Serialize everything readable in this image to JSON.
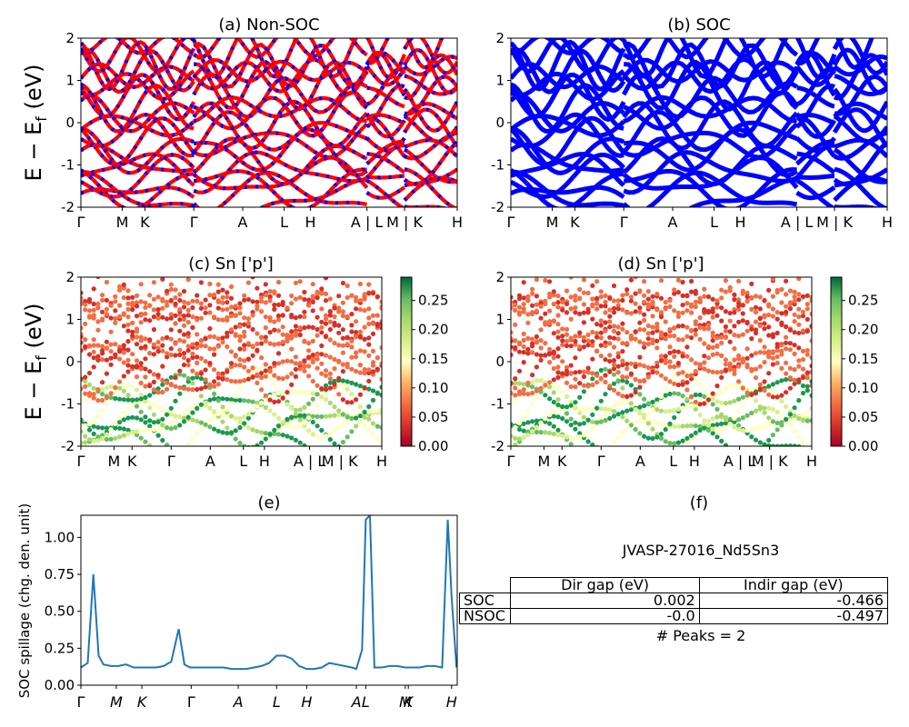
{
  "figure": {
    "ylabel_bands": "E − E",
    "ylabel_sub": "f",
    "ylabel_unit": " (eV)"
  },
  "chart_data": [
    {
      "id": "a",
      "type": "line",
      "title": "(a) Non-SOC",
      "ylim": [
        -2,
        2
      ],
      "yticks": [
        -2,
        -1,
        0,
        1,
        2
      ],
      "xticks": [
        "Γ",
        "M",
        "K",
        "Γ",
        "A",
        "L",
        "H",
        "A | L",
        "M | K",
        "H"
      ],
      "colors": [
        "#ff0000",
        "#0000ff"
      ],
      "bands": [
        -1.85,
        -1.72,
        -1.5,
        -1.32,
        -1.1,
        -0.92,
        -0.7,
        -0.45,
        -0.25,
        -0.05,
        0.18,
        0.35,
        0.62,
        0.88,
        1.1,
        1.22,
        1.35,
        1.62,
        1.85
      ]
    },
    {
      "id": "b",
      "type": "line",
      "title": "(b) SOC",
      "ylim": [
        -2,
        2
      ],
      "yticks": [
        -2,
        -1,
        0,
        1,
        2
      ],
      "xticks": [
        "Γ",
        "M",
        "K",
        "Γ",
        "A",
        "L",
        "H",
        "A | L",
        "M | K",
        "H"
      ],
      "colors": [
        "#0000ff"
      ],
      "bands": [
        -1.85,
        -1.72,
        -1.5,
        -1.32,
        -1.1,
        -0.92,
        -0.7,
        -0.45,
        -0.25,
        -0.05,
        0.18,
        0.35,
        0.62,
        0.88,
        1.1,
        1.22,
        1.35,
        1.62,
        1.85
      ]
    },
    {
      "id": "c",
      "type": "scatter",
      "title": "(c)  Sn ['p']",
      "ylim": [
        -2,
        2
      ],
      "yticks": [
        -2,
        -1,
        0,
        1,
        2
      ],
      "xticks": [
        "Γ",
        "M",
        "K",
        "Γ",
        "A",
        "L",
        "H",
        "A | L",
        "M | K",
        "H"
      ],
      "colorbar": {
        "min": 0.0,
        "max": 0.29,
        "ticks": [
          "0.00",
          "0.05",
          "0.10",
          "0.15",
          "0.20",
          "0.25"
        ],
        "colormap": "RdYlGn"
      },
      "bands": [
        -1.85,
        -1.72,
        -1.5,
        -1.32,
        -1.1,
        -0.92,
        -0.7,
        -0.45,
        -0.25,
        -0.05,
        0.18,
        0.35,
        0.62,
        0.88,
        1.1,
        1.22,
        1.35,
        1.62,
        1.85
      ]
    },
    {
      "id": "d",
      "type": "scatter",
      "title": "(d) Sn ['p']",
      "ylim": [
        -2,
        2
      ],
      "yticks": [
        -2,
        -1,
        0,
        1,
        2
      ],
      "xticks": [
        "Γ",
        "M",
        "K",
        "Γ",
        "A",
        "L",
        "H",
        "A | L",
        "M | K",
        "H"
      ],
      "colorbar": {
        "min": 0.0,
        "max": 0.29,
        "ticks": [
          "0.00",
          "0.05",
          "0.10",
          "0.15",
          "0.20",
          "0.25"
        ],
        "colormap": "RdYlGn"
      },
      "bands": [
        -1.85,
        -1.72,
        -1.5,
        -1.32,
        -1.1,
        -0.92,
        -0.7,
        -0.45,
        -0.25,
        -0.05,
        0.18,
        0.35,
        0.62,
        0.88,
        1.1,
        1.22,
        1.35,
        1.62,
        1.85
      ]
    },
    {
      "id": "e",
      "type": "line",
      "title": "(e)",
      "ylabel": "SOC spillage (chg. den. unit)",
      "ylim": [
        0,
        1.15
      ],
      "yticks": [
        "0.00",
        "0.25",
        "0.50",
        "0.75",
        "1.00"
      ],
      "xlim": [
        0,
        1
      ],
      "xtick_positions": [
        0.0,
        0.094,
        0.162,
        0.293,
        0.418,
        0.52,
        0.6,
        0.732,
        0.757,
        0.862,
        0.87,
        0.985
      ],
      "xtick_labels": [
        "Γ",
        "M",
        "K",
        "Γ",
        "A",
        "L",
        "H",
        "A",
        "L",
        "M",
        "K",
        "H"
      ],
      "color": "#1f77b4",
      "x": [
        0.0,
        0.018,
        0.033,
        0.047,
        0.06,
        0.08,
        0.1,
        0.12,
        0.14,
        0.15,
        0.18,
        0.2,
        0.22,
        0.24,
        0.26,
        0.275,
        0.29,
        0.31,
        0.33,
        0.36,
        0.38,
        0.4,
        0.42,
        0.44,
        0.46,
        0.48,
        0.5,
        0.52,
        0.54,
        0.56,
        0.58,
        0.6,
        0.62,
        0.64,
        0.66,
        0.68,
        0.7,
        0.72,
        0.732,
        0.747,
        0.757,
        0.768,
        0.78,
        0.8,
        0.82,
        0.84,
        0.862,
        0.88,
        0.9,
        0.92,
        0.94,
        0.96,
        0.975,
        0.985,
        0.998
      ],
      "y": [
        0.12,
        0.15,
        0.75,
        0.2,
        0.14,
        0.13,
        0.13,
        0.14,
        0.12,
        0.12,
        0.12,
        0.12,
        0.13,
        0.16,
        0.38,
        0.14,
        0.12,
        0.12,
        0.12,
        0.12,
        0.12,
        0.11,
        0.11,
        0.11,
        0.12,
        0.13,
        0.15,
        0.2,
        0.2,
        0.18,
        0.13,
        0.11,
        0.11,
        0.12,
        0.15,
        0.14,
        0.13,
        0.12,
        0.11,
        0.24,
        1.12,
        1.15,
        0.12,
        0.12,
        0.13,
        0.13,
        0.12,
        0.12,
        0.12,
        0.13,
        0.13,
        0.12,
        1.12,
        0.6,
        0.12
      ]
    }
  ],
  "panel_f": {
    "title": "(f)",
    "material": "JVASP-27016_Nd5Sn3",
    "table": {
      "headers": [
        "Dir gap (eV)",
        "Indir gap (eV)"
      ],
      "rows": [
        {
          "label": "SOC",
          "dir": "0.002",
          "indir": "-0.466"
        },
        {
          "label": "NSOC",
          "dir": "-0.0",
          "indir": "-0.497"
        }
      ]
    },
    "peaks": "# Peaks = 2"
  }
}
